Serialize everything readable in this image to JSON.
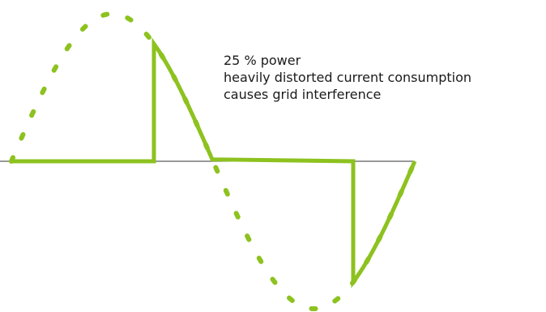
{
  "caption": {
    "lines": [
      "25 % power",
      "heavily distorted current consumption",
      "causes grid interference"
    ]
  },
  "diagram": {
    "ideal_waveform": "sine",
    "current_waveform": "phase-cut",
    "power_percent": 25
  },
  "colors": {
    "waveform": "#8dc21f",
    "axis": "#333333",
    "text": "#1a1a1a"
  }
}
